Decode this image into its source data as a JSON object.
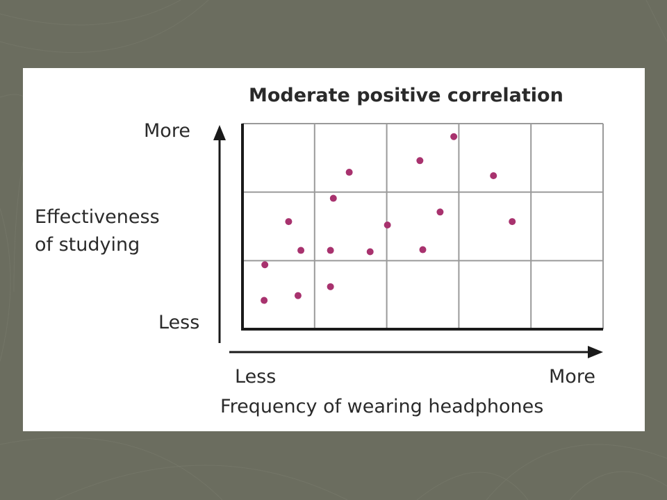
{
  "chart_data": {
    "type": "scatter",
    "title": "Moderate positive correlation",
    "xlabel": "Frequency of wearing headphones",
    "ylabel_lines": [
      "Effectiveness",
      "of studying"
    ],
    "x_tick_labels": {
      "low": "Less",
      "high": "More"
    },
    "y_tick_labels": {
      "low": "Less",
      "high": "More"
    },
    "xlim": [
      0,
      5
    ],
    "ylim": [
      0,
      3
    ],
    "grid": true,
    "point_color": "#a8326e",
    "points": [
      {
        "x": 0.3,
        "y": 0.42
      },
      {
        "x": 0.77,
        "y": 0.49
      },
      {
        "x": 1.22,
        "y": 0.62
      },
      {
        "x": 0.31,
        "y": 0.94
      },
      {
        "x": 0.81,
        "y": 1.15
      },
      {
        "x": 1.22,
        "y": 1.15
      },
      {
        "x": 1.77,
        "y": 1.13
      },
      {
        "x": 0.64,
        "y": 1.57
      },
      {
        "x": 2.01,
        "y": 1.52
      },
      {
        "x": 2.5,
        "y": 1.16
      },
      {
        "x": 2.74,
        "y": 1.71
      },
      {
        "x": 1.26,
        "y": 1.91
      },
      {
        "x": 1.48,
        "y": 2.29
      },
      {
        "x": 2.46,
        "y": 2.46
      },
      {
        "x": 2.93,
        "y": 2.81
      },
      {
        "x": 3.48,
        "y": 2.24
      },
      {
        "x": 3.74,
        "y": 1.57
      }
    ]
  }
}
